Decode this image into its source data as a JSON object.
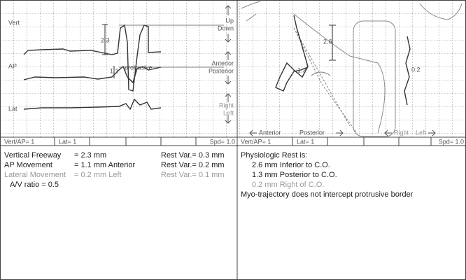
{
  "left_panel": {
    "channel_labels": [
      "Vert",
      "AP",
      "Lat"
    ],
    "measure_labels": [
      "2.3",
      "1.1"
    ],
    "trace_label": "protrusive",
    "direction_labels": [
      "Up",
      "Down",
      "Anterior",
      "Posterior",
      "Right",
      "Left"
    ],
    "status": [
      "Vert/AP= 1",
      "Lat= 1",
      "Spd= 1.0"
    ]
  },
  "right_panel": {
    "measure_labels": [
      "2.6",
      "1.3",
      "0.2"
    ],
    "direction_labels": [
      "Anterior",
      "Posterior",
      "Right",
      "Left"
    ],
    "status": [
      "Vert/AP= 1",
      "Lat= 1",
      "Spd= 1.0"
    ]
  },
  "left_report": {
    "rows": [
      [
        "Vertical Freeway",
        "= 2.3 mm",
        "Rest Var.= 0.3 mm"
      ],
      [
        "AP Movement",
        "= 1.1 mm Anterior",
        "Rest Var.= 0.2 mm"
      ],
      [
        "Lateral Movement",
        "= 0.2 mm Left",
        "Rest Var.= 0.1 mm"
      ]
    ],
    "ratio": "A/V ratio = 0.5"
  },
  "right_report": {
    "title": "Physiologic Rest is:",
    "lines": [
      "2.6 mm Inferior to C.O.",
      "1.3 mm Posterior to C.O.",
      "0.2 mm Right of C.O."
    ],
    "note": "Myo-trajectory does not intercept protrusive border"
  }
}
